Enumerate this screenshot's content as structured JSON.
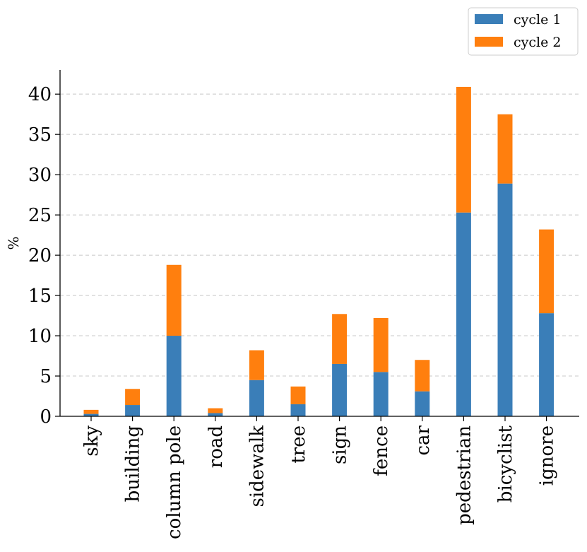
{
  "chart_data": {
    "type": "bar",
    "stacked": true,
    "categories": [
      "sky",
      "building",
      "column pole",
      "road",
      "sidewalk",
      "tree",
      "sign",
      "fence",
      "car",
      "pedestrian",
      "bicyclist",
      "ignore"
    ],
    "series": [
      {
        "name": "cycle 1",
        "color": "#3a7eb8",
        "values": [
          0.3,
          1.4,
          10.0,
          0.4,
          4.5,
          1.5,
          6.5,
          5.5,
          3.1,
          25.3,
          28.9,
          12.8
        ]
      },
      {
        "name": "cycle 2",
        "color": "#ff7f0e",
        "values": [
          0.5,
          2.0,
          8.8,
          0.6,
          3.7,
          2.2,
          6.2,
          6.7,
          3.9,
          15.6,
          8.6,
          10.4
        ]
      }
    ],
    "title": "",
    "xlabel": "",
    "ylabel": "%",
    "ylim": [
      0,
      43
    ],
    "yticks": [
      0,
      5,
      10,
      15,
      20,
      25,
      30,
      35,
      40
    ],
    "grid": "horizontal-dashed",
    "legend_position": "top-right"
  }
}
